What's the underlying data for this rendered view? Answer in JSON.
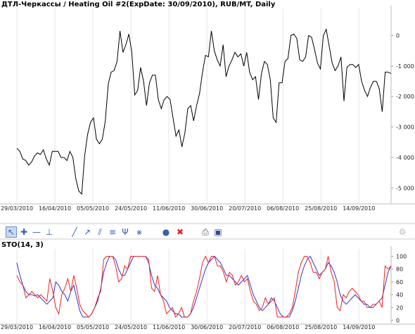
{
  "title": "ДТЛ-Черкассы / Heating Oil #2(ExpDate: 30/09/2010), RUB/MT, Daily",
  "sto_title": "STO(14, 3)",
  "colors": {
    "price": "#000000",
    "k_line": "#3333cc",
    "d_line": "#ee2222",
    "grid": "#e6e6e6"
  },
  "toolbar": {
    "icons": [
      "cursor-arrow-icon",
      "crosshair-icon",
      "horizontal-line-icon",
      "vertical-line-icon",
      "trendline-icon",
      "ray-icon",
      "parallel-channel-icon",
      "fibonacci-icon",
      "andrews-pitchfork-icon",
      "gann-fan-icon",
      "comment-icon",
      "delete-drawings-icon",
      "print-icon",
      "save-icon",
      "trash-icon"
    ]
  },
  "chart_data": [
    {
      "type": "line",
      "title": "ДТЛ-Черкассы / Heating Oil #2(ExpDate: 30/09/2010), RUB/MT, Daily",
      "x_ticks": [
        "29/03/2010",
        "16/04/2010",
        "05/05/2010",
        "24/05/2010",
        "11/06/2010",
        "30/06/2010",
        "20/07/2010",
        "06/08/2010",
        "25/08/2010",
        "14/09/2010"
      ],
      "y_ticks": [
        0,
        -1000,
        -2000,
        -3000,
        -4000,
        -5000
      ],
      "y_tick_labels": [
        "0",
        "-1 000",
        "-2 000",
        "-3 000",
        "-4 000",
        "-5 000"
      ],
      "ylim": [
        -5500,
        750
      ],
      "series": [
        {
          "values": [
            -3700,
            -3800,
            -4050,
            -4100,
            -4250,
            -4150,
            -3950,
            -3850,
            -3900,
            -3750,
            -4050,
            -4250,
            -3800,
            -3800,
            -3800,
            -4000,
            -4000,
            -4100,
            -3800,
            -4000,
            -4700,
            -5100,
            -5200,
            -3950,
            -3250,
            -2850,
            -2700,
            -3400,
            -3550,
            -3400,
            -2800,
            -1600,
            -1200,
            -1150,
            -850,
            150,
            -550,
            -300,
            50,
            -550,
            -1950,
            -1800,
            -1050,
            -1500,
            -2300,
            -1550,
            -1300,
            -1300,
            -2100,
            -2400,
            -2100,
            -2000,
            -2100,
            -2700,
            -3300,
            -3100,
            -3650,
            -3200,
            -2400,
            -2300,
            -2800,
            -2300,
            -1900,
            -1200,
            -650,
            -700,
            150,
            -500,
            -800,
            -1000,
            -300,
            -1350,
            -1000,
            -800,
            -550,
            -700,
            -600,
            -1000,
            -550,
            -1200,
            -1450,
            -1350,
            -2100,
            -1250,
            -850,
            -950,
            -1450,
            -2700,
            -2850,
            -1550,
            -1550,
            -850,
            -750,
            0,
            50,
            -100,
            -800,
            -850,
            -700,
            0,
            -50,
            -450,
            -900,
            -1100,
            0,
            200,
            -350,
            -900,
            -1150,
            -1000,
            -700,
            -2150,
            -1050,
            -950,
            -950,
            -1050,
            -950,
            -1500,
            -1800,
            -2000,
            -1700,
            -1500,
            -1500,
            -1750,
            -2500,
            -1200,
            -1200,
            -1250
          ]
        }
      ]
    },
    {
      "type": "line",
      "title": "STO(14, 3)",
      "x_ticks": [
        "29/03/2010",
        "16/04/2010",
        "05/05/2010",
        "24/05/2010",
        "11/06/2010",
        "30/06/2010",
        "20/07/2010",
        "06/08/2010",
        "25/08/2010",
        "14/09/2010"
      ],
      "y_ticks": [
        0,
        20,
        40,
        60,
        80,
        100
      ],
      "ylim": [
        -5,
        105
      ],
      "series": [
        {
          "values": [
            90,
            70,
            55,
            45,
            40,
            40,
            38,
            40,
            35,
            30,
            25,
            30,
            35,
            60,
            55,
            45,
            40,
            30,
            45,
            55,
            35,
            15,
            5,
            5,
            5,
            10,
            20,
            30,
            50,
            75,
            90,
            100,
            100,
            95,
            80,
            70,
            70,
            80,
            90,
            100,
            100,
            100,
            100,
            100,
            90,
            70,
            55,
            50,
            40,
            35,
            30,
            20,
            15,
            10,
            10,
            5,
            5,
            5,
            10,
            20,
            35,
            50,
            65,
            80,
            90,
            95,
            100,
            95,
            90,
            80,
            70,
            70,
            65,
            60,
            55,
            60,
            65,
            70,
            55,
            40,
            30,
            20,
            15,
            20,
            25,
            35,
            30,
            20,
            10,
            5,
            5,
            5,
            15,
            30,
            50,
            70,
            85,
            95,
            100,
            90,
            80,
            70,
            75,
            80,
            90,
            85,
            75,
            60,
            40,
            30,
            25,
            30,
            35,
            40,
            35,
            30,
            25,
            25,
            20,
            20,
            25,
            30,
            35,
            55,
            75,
            85
          ]
        },
        {
          "values": [
            70,
            60,
            55,
            35,
            40,
            45,
            40,
            35,
            40,
            35,
            30,
            65,
            45,
            20,
            10,
            40,
            50,
            65,
            45,
            70,
            50,
            25,
            15,
            10,
            5,
            10,
            20,
            35,
            45,
            95,
            100,
            100,
            100,
            85,
            60,
            65,
            85,
            80,
            100,
            100,
            100,
            100,
            100,
            100,
            95,
            50,
            45,
            70,
            40,
            30,
            10,
            15,
            20,
            5,
            10,
            20,
            5,
            5,
            10,
            30,
            45,
            65,
            90,
            100,
            90,
            100,
            100,
            85,
            85,
            75,
            60,
            75,
            70,
            55,
            60,
            70,
            60,
            65,
            45,
            30,
            25,
            15,
            20,
            35,
            25,
            30,
            35,
            5,
            5,
            5,
            5,
            10,
            20,
            45,
            75,
            90,
            100,
            100,
            90,
            75,
            75,
            65,
            75,
            80,
            100,
            75,
            60,
            20,
            15,
            40,
            35,
            45,
            50,
            45,
            40,
            30,
            30,
            20,
            20,
            25,
            25,
            30,
            20,
            85,
            80,
            85
          ]
        }
      ]
    }
  ]
}
